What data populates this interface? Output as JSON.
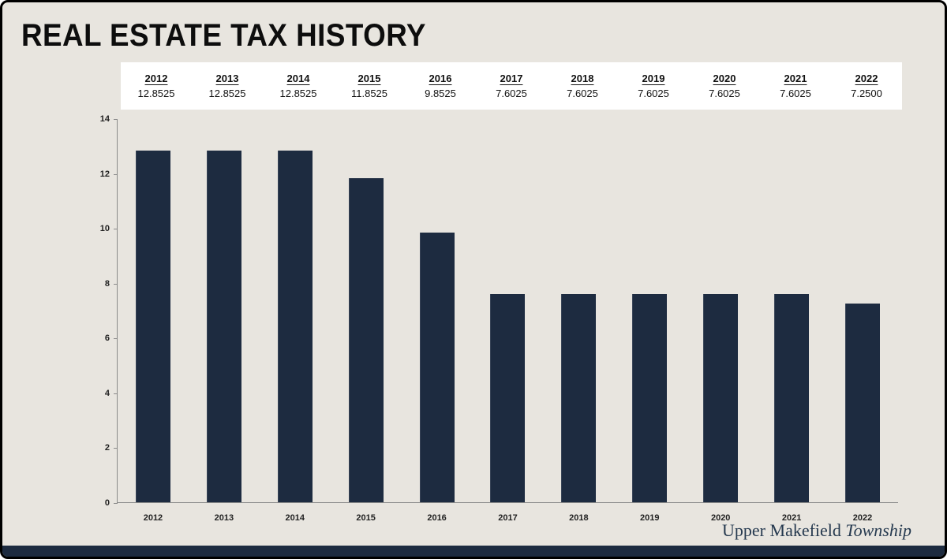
{
  "title": "REAL ESTATE TAX HISTORY",
  "footer": {
    "org_name": "Upper Makefield ",
    "org_suffix": "Township"
  },
  "chart_data": {
    "type": "bar",
    "title": "REAL ESTATE TAX HISTORY",
    "categories": [
      "2012",
      "2013",
      "2014",
      "2015",
      "2016",
      "2017",
      "2018",
      "2019",
      "2020",
      "2021",
      "2022"
    ],
    "values": [
      12.8525,
      12.8525,
      12.8525,
      11.8525,
      9.8525,
      7.6025,
      7.6025,
      7.6025,
      7.6025,
      7.6025,
      7.25
    ],
    "value_labels": [
      "12.8525",
      "12.8525",
      "12.8525",
      "11.8525",
      "9.8525",
      "7.6025",
      "7.6025",
      "7.6025",
      "7.6025",
      "7.6025",
      "7.2500"
    ],
    "xlabel": "",
    "ylabel": "",
    "ylim": [
      0,
      14
    ],
    "yticks": [
      0,
      2,
      4,
      6,
      8,
      10,
      12,
      14
    ],
    "grid": false,
    "legend": "none",
    "bar_color": "#1d2b40"
  },
  "colors": {
    "background": "#e8e5df",
    "bar": "#1d2b40",
    "footer_text": "#25394f",
    "bottom_strip": "#1d2b40",
    "table_band": "#ffffff"
  }
}
